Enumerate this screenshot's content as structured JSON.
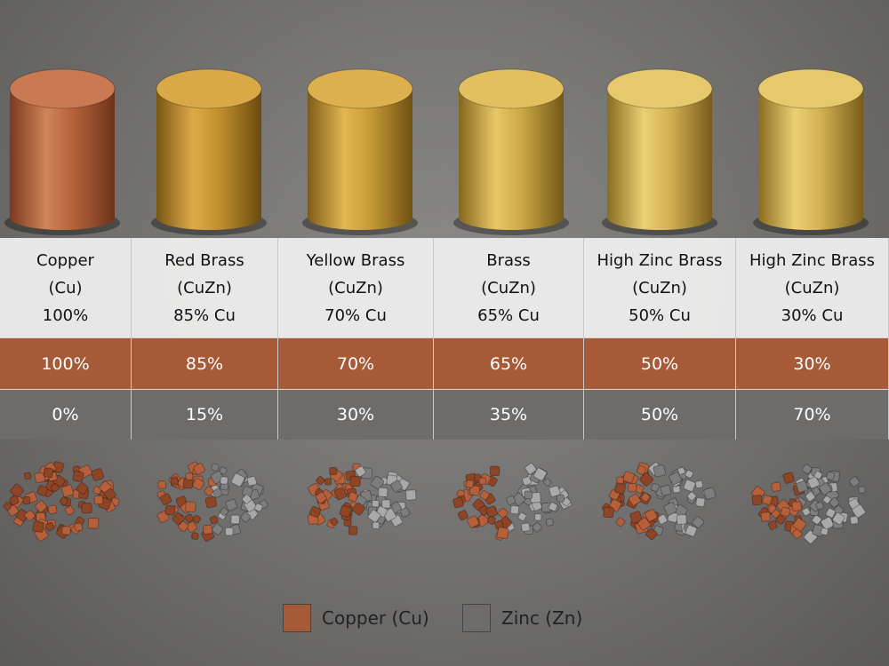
{
  "table": {
    "columns": [
      {
        "name": "Copper",
        "formula": "(Cu)",
        "composition": "100%"
      },
      {
        "name": "Red Brass",
        "formula": "(CuZn)",
        "composition": "85% Cu"
      },
      {
        "name": "Yellow Brass",
        "formula": "(CuZn)",
        "composition": "70% Cu"
      },
      {
        "name": "Brass",
        "formula": "(CuZn)",
        "composition": "65% Cu"
      },
      {
        "name": "High Zinc Brass",
        "formula": "(CuZn)",
        "composition": "50% Cu"
      },
      {
        "name": "High Zinc Brass",
        "formula": "(CuZn)",
        "composition": "30% Cu"
      }
    ],
    "copper_row": [
      "100%",
      "85%",
      "70%",
      "65%",
      "50%",
      "30%"
    ],
    "zinc_row": [
      "0%",
      "15%",
      "30%",
      "35%",
      "50%",
      "70%"
    ]
  },
  "legend": [
    "Copper (Cu)",
    "Zinc (Zn)"
  ]
}
